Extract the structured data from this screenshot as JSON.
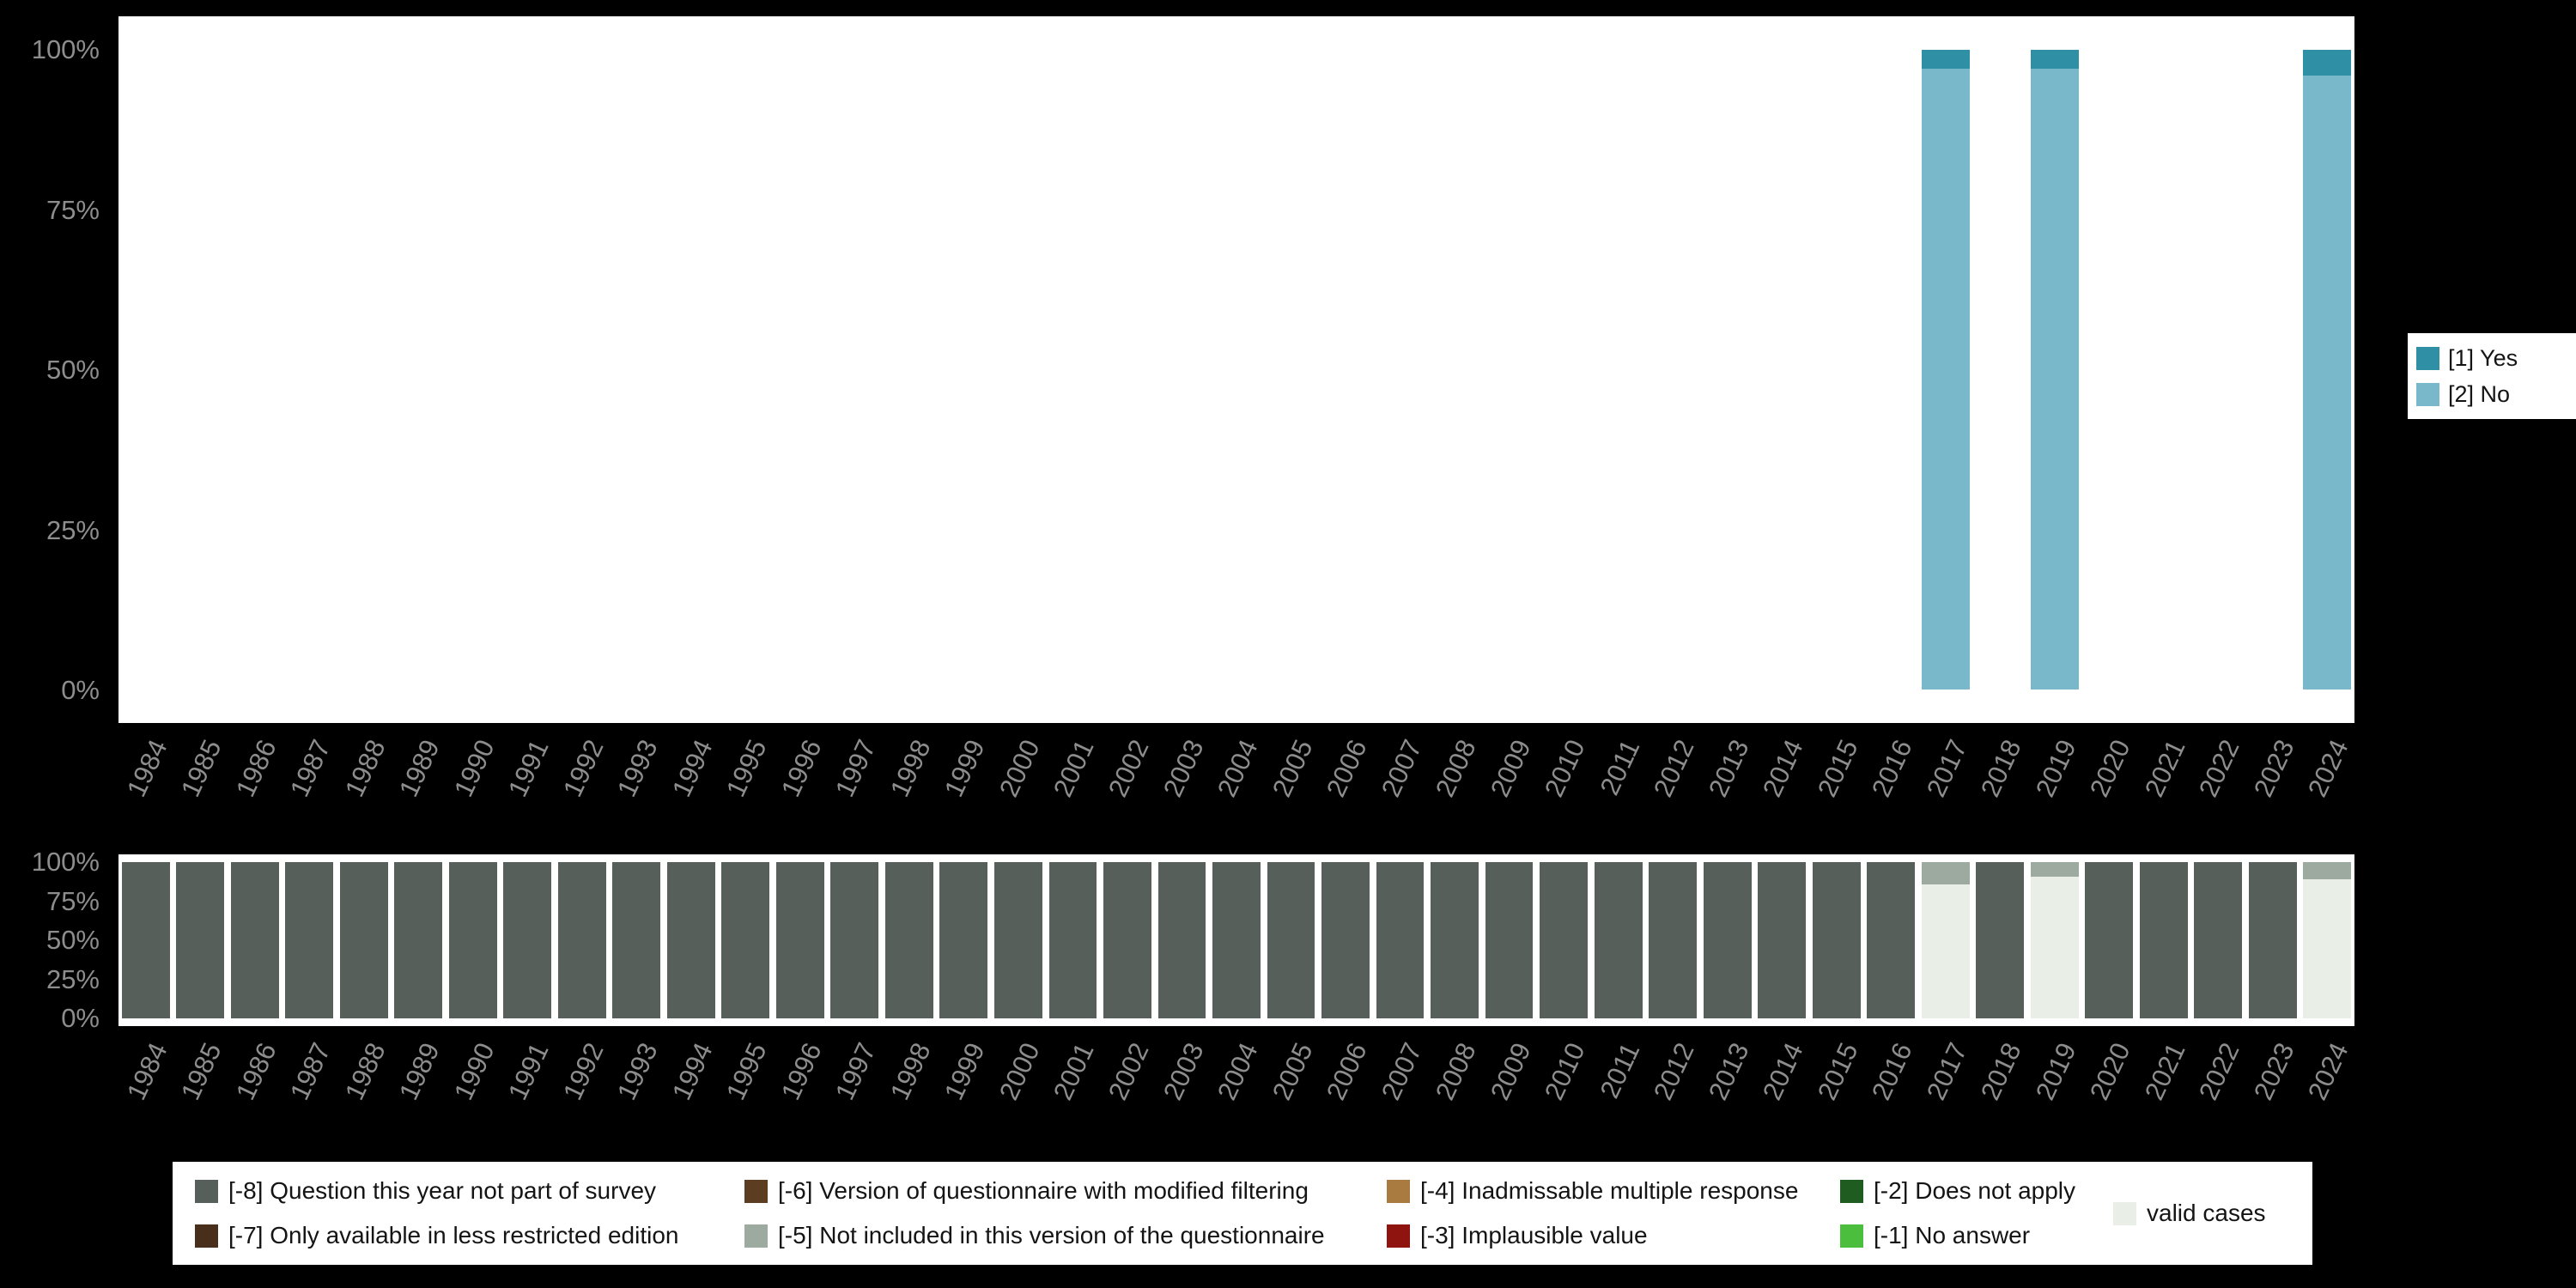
{
  "page": {
    "background": "#000000"
  },
  "colors": {
    "background": "#000000",
    "plot_background": "#ffffff",
    "axis_text": "#8d8d8d",
    "legend_background": "#ffffff",
    "legend_text": "#141414"
  },
  "chart_data": [
    {
      "type": "bar",
      "stacked": true,
      "title": "",
      "xlabel": "",
      "ylabel": "",
      "ylim": [
        0,
        100
      ],
      "grid": false,
      "legend_position": "right",
      "yticks": [
        {
          "label": "0%",
          "value": 0
        },
        {
          "label": "25%",
          "value": 25
        },
        {
          "label": "50%",
          "value": 50
        },
        {
          "label": "75%",
          "value": 75
        },
        {
          "label": "100%",
          "value": 100
        }
      ],
      "categories": [
        "1984",
        "1985",
        "1986",
        "1987",
        "1988",
        "1989",
        "1990",
        "1991",
        "1992",
        "1993",
        "1994",
        "1995",
        "1996",
        "1997",
        "1998",
        "1999",
        "2000",
        "2001",
        "2002",
        "2003",
        "2004",
        "2005",
        "2006",
        "2007",
        "2008",
        "2009",
        "2010",
        "2011",
        "2012",
        "2013",
        "2014",
        "2015",
        "2016",
        "2017",
        "2018",
        "2019",
        "2020",
        "2021",
        "2022",
        "2023",
        "2024"
      ],
      "series": [
        {
          "name": "[1] Yes",
          "color": "#2e8fa5",
          "values": [
            0,
            0,
            0,
            0,
            0,
            0,
            0,
            0,
            0,
            0,
            0,
            0,
            0,
            0,
            0,
            0,
            0,
            0,
            0,
            0,
            0,
            0,
            0,
            0,
            0,
            0,
            0,
            0,
            0,
            0,
            0,
            0,
            0,
            3,
            0,
            3,
            0,
            0,
            0,
            0,
            4
          ]
        },
        {
          "name": "[2] No",
          "color": "#79b8ca",
          "values": [
            0,
            0,
            0,
            0,
            0,
            0,
            0,
            0,
            0,
            0,
            0,
            0,
            0,
            0,
            0,
            0,
            0,
            0,
            0,
            0,
            0,
            0,
            0,
            0,
            0,
            0,
            0,
            0,
            0,
            0,
            0,
            0,
            0,
            97,
            0,
            97,
            0,
            0,
            0,
            0,
            96
          ]
        }
      ]
    },
    {
      "type": "bar",
      "stacked": true,
      "title": "",
      "xlabel": "",
      "ylabel": "",
      "ylim": [
        0,
        100
      ],
      "grid": false,
      "legend_position": "bottom",
      "yticks": [
        {
          "label": "0%",
          "value": 0
        },
        {
          "label": "25%",
          "value": 25
        },
        {
          "label": "50%",
          "value": 50
        },
        {
          "label": "75%",
          "value": 75
        },
        {
          "label": "100%",
          "value": 100
        }
      ],
      "categories": [
        "1984",
        "1985",
        "1986",
        "1987",
        "1988",
        "1989",
        "1990",
        "1991",
        "1992",
        "1993",
        "1994",
        "1995",
        "1996",
        "1997",
        "1998",
        "1999",
        "2000",
        "2001",
        "2002",
        "2003",
        "2004",
        "2005",
        "2006",
        "2007",
        "2008",
        "2009",
        "2010",
        "2011",
        "2012",
        "2013",
        "2014",
        "2015",
        "2016",
        "2017",
        "2018",
        "2019",
        "2020",
        "2021",
        "2022",
        "2023",
        "2024"
      ],
      "legend_layout": [
        [
          0,
          1
        ],
        [
          2,
          3
        ],
        [
          4,
          5
        ],
        [
          6,
          7
        ],
        [
          8
        ]
      ],
      "series": [
        {
          "name": "[-8] Question this year not part of survey",
          "color": "#575f5a",
          "values": [
            100,
            100,
            100,
            100,
            100,
            100,
            100,
            100,
            100,
            100,
            100,
            100,
            100,
            100,
            100,
            100,
            100,
            100,
            100,
            100,
            100,
            100,
            100,
            100,
            100,
            100,
            100,
            100,
            100,
            100,
            100,
            100,
            100,
            0,
            100,
            0,
            100,
            100,
            100,
            100,
            0
          ]
        },
        {
          "name": "[-7] Only available in less restricted edition",
          "color": "#472f1c",
          "values": [
            0,
            0,
            0,
            0,
            0,
            0,
            0,
            0,
            0,
            0,
            0,
            0,
            0,
            0,
            0,
            0,
            0,
            0,
            0,
            0,
            0,
            0,
            0,
            0,
            0,
            0,
            0,
            0,
            0,
            0,
            0,
            0,
            0,
            0,
            0,
            0,
            0,
            0,
            0,
            0,
            0
          ]
        },
        {
          "name": "[-6] Version of questionnaire with modified filtering",
          "color": "#5c3d21",
          "values": [
            0,
            0,
            0,
            0,
            0,
            0,
            0,
            0,
            0,
            0,
            0,
            0,
            0,
            0,
            0,
            0,
            0,
            0,
            0,
            0,
            0,
            0,
            0,
            0,
            0,
            0,
            0,
            0,
            0,
            0,
            0,
            0,
            0,
            0,
            0,
            0,
            0,
            0,
            0,
            0,
            0
          ]
        },
        {
          "name": "[-5] Not included in this version of the questionnaire",
          "color": "#9daaa0",
          "values": [
            0,
            0,
            0,
            0,
            0,
            0,
            0,
            0,
            0,
            0,
            0,
            0,
            0,
            0,
            0,
            0,
            0,
            0,
            0,
            0,
            0,
            0,
            0,
            0,
            0,
            0,
            0,
            0,
            0,
            0,
            0,
            0,
            0,
            14,
            0,
            9,
            0,
            0,
            0,
            0,
            11
          ]
        },
        {
          "name": "[-4] Inadmissable multiple response",
          "color": "#aa7b41",
          "values": [
            0,
            0,
            0,
            0,
            0,
            0,
            0,
            0,
            0,
            0,
            0,
            0,
            0,
            0,
            0,
            0,
            0,
            0,
            0,
            0,
            0,
            0,
            0,
            0,
            0,
            0,
            0,
            0,
            0,
            0,
            0,
            0,
            0,
            0,
            0,
            0,
            0,
            0,
            0,
            0,
            0
          ]
        },
        {
          "name": "[-3] Implausible value",
          "color": "#8f140f",
          "values": [
            0,
            0,
            0,
            0,
            0,
            0,
            0,
            0,
            0,
            0,
            0,
            0,
            0,
            0,
            0,
            0,
            0,
            0,
            0,
            0,
            0,
            0,
            0,
            0,
            0,
            0,
            0,
            0,
            0,
            0,
            0,
            0,
            0,
            0,
            0,
            0,
            0,
            0,
            0,
            0,
            0
          ]
        },
        {
          "name": "[-2] Does not apply",
          "color": "#1f5c20",
          "values": [
            0,
            0,
            0,
            0,
            0,
            0,
            0,
            0,
            0,
            0,
            0,
            0,
            0,
            0,
            0,
            0,
            0,
            0,
            0,
            0,
            0,
            0,
            0,
            0,
            0,
            0,
            0,
            0,
            0,
            0,
            0,
            0,
            0,
            0,
            0,
            0,
            0,
            0,
            0,
            0,
            0
          ]
        },
        {
          "name": "[-1] No answer",
          "color": "#4cbe3d",
          "values": [
            0,
            0,
            0,
            0,
            0,
            0,
            0,
            0,
            0,
            0,
            0,
            0,
            0,
            0,
            0,
            0,
            0,
            0,
            0,
            0,
            0,
            0,
            0,
            0,
            0,
            0,
            0,
            0,
            0,
            0,
            0,
            0,
            0,
            0,
            0,
            0,
            0,
            0,
            0,
            0,
            0
          ]
        },
        {
          "name": "valid cases",
          "color": "#e9eee6",
          "values": [
            0,
            0,
            0,
            0,
            0,
            0,
            0,
            0,
            0,
            0,
            0,
            0,
            0,
            0,
            0,
            0,
            0,
            0,
            0,
            0,
            0,
            0,
            0,
            0,
            0,
            0,
            0,
            0,
            0,
            0,
            0,
            0,
            0,
            86,
            0,
            91,
            0,
            0,
            0,
            0,
            89
          ]
        }
      ]
    }
  ]
}
